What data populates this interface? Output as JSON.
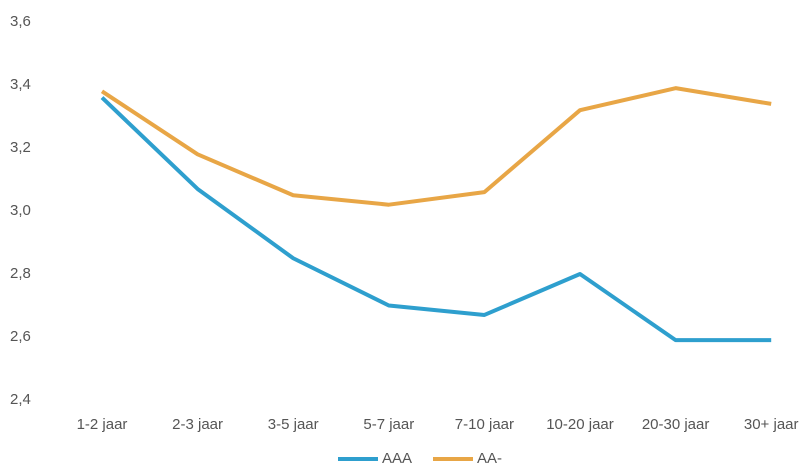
{
  "chart_data": {
    "type": "line",
    "categories": [
      "1-2 jaar",
      "2-3 jaar",
      "3-5 jaar",
      "5-7 jaar",
      "7-10 jaar",
      "10-20 jaar",
      "20-30 jaar",
      "30+ jaar"
    ],
    "series": [
      {
        "name": "AAA",
        "color": "#2e9fce",
        "values": [
          3.36,
          3.07,
          2.85,
          2.7,
          2.67,
          2.8,
          2.59,
          2.59
        ]
      },
      {
        "name": "AA-",
        "color": "#e8a646",
        "values": [
          3.38,
          3.18,
          3.05,
          3.02,
          3.06,
          3.32,
          3.39,
          3.34
        ]
      }
    ],
    "ylim": [
      2.4,
      3.6
    ],
    "yticks": [
      {
        "value": 2.4,
        "label": "2,4"
      },
      {
        "value": 2.6,
        "label": "2,6"
      },
      {
        "value": 2.8,
        "label": "2,8"
      },
      {
        "value": 3.0,
        "label": "3,0"
      },
      {
        "value": 3.2,
        "label": "3,2"
      },
      {
        "value": 3.4,
        "label": "3,4"
      },
      {
        "value": 3.6,
        "label": "3,6"
      }
    ],
    "grid": false,
    "legend": "bottom"
  }
}
